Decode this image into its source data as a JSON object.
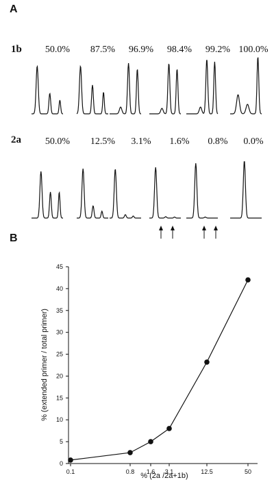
{
  "panel_a": {
    "letter": "A",
    "rows": [
      {
        "label": "1b",
        "values": [
          "50.0%",
          "87.5%",
          "96.9%",
          "98.4%",
          "99.2%",
          "100.0%"
        ]
      },
      {
        "label": "2a",
        "values": [
          "50.0%",
          "12.5%",
          "3.1%",
          "1.6%",
          "0.8%",
          "0.0%"
        ]
      }
    ]
  },
  "panel_b": {
    "letter": "B"
  },
  "chart_data": {
    "type": "line",
    "title": "",
    "xlabel": "% (2a /2a+1b)",
    "ylabel": "% (extended primer / total primer)",
    "x_ticks": [
      "0.1",
      "0.8",
      "1.6",
      "3.1",
      "12.5",
      "50"
    ],
    "y_ticks": [
      "0",
      "5",
      "10",
      "15",
      "20",
      "25",
      "30",
      "35",
      "40",
      "45"
    ],
    "ylim": [
      0,
      45
    ],
    "grid": false,
    "legend": "none",
    "series": [
      {
        "x": [
          0.1,
          0.8,
          1.6,
          3.1,
          12.5,
          50
        ],
        "y": [
          0.8,
          2.5,
          5.0,
          8.0,
          23.2,
          42.0
        ]
      }
    ]
  }
}
